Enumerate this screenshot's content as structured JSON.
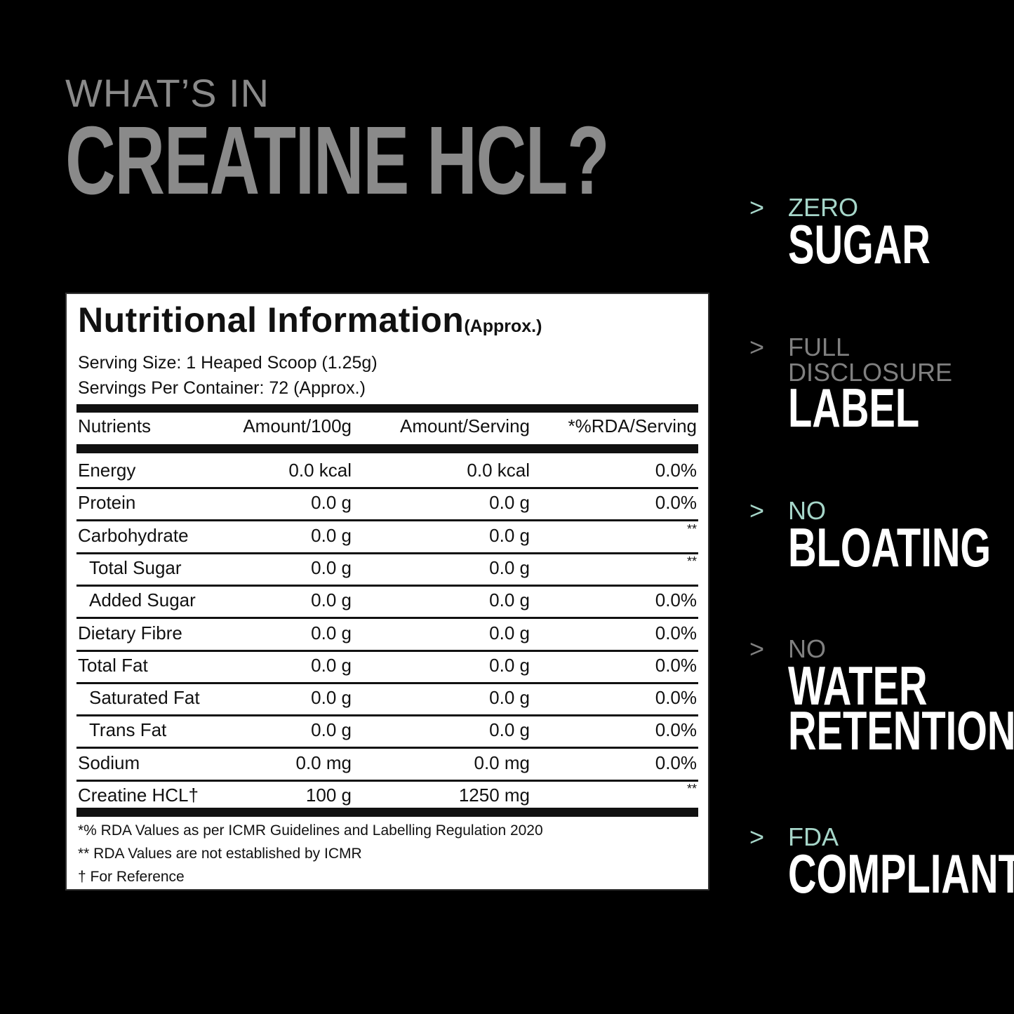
{
  "heading": {
    "kicker": "WHAT’S IN",
    "title": "CREATINE HCL?"
  },
  "label": {
    "title": "Nutritional Information",
    "title_suffix": "(Approx.)",
    "serving_size": "Serving Size: 1 Heaped Scoop (1.25g)",
    "servings_per_container": "Servings Per Container: 72 (Approx.)",
    "columns": [
      "Nutrients",
      "Amount/100g",
      "Amount/Serving",
      "*%RDA/Serving"
    ],
    "rows": [
      {
        "name": "Energy",
        "per100": "0.0 kcal",
        "perServing": "0.0 kcal",
        "rda": "0.0%"
      },
      {
        "name": "Protein",
        "per100": "0.0 g",
        "perServing": "0.0 g",
        "rda": "0.0%"
      },
      {
        "name": "Carbohydrate",
        "per100": "0.0 g",
        "perServing": "0.0 g",
        "rda": "**"
      },
      {
        "name": "Total Sugar",
        "per100": "0.0 g",
        "perServing": "0.0 g",
        "rda": "**"
      },
      {
        "name": "Added Sugar",
        "per100": "0.0 g",
        "perServing": "0.0 g",
        "rda": "0.0%"
      },
      {
        "name": "Dietary Fibre",
        "per100": "0.0 g",
        "perServing": "0.0 g",
        "rda": "0.0%"
      },
      {
        "name": "Total Fat",
        "per100": "0.0 g",
        "perServing": "0.0 g",
        "rda": "0.0%"
      },
      {
        "name": "Saturated Fat",
        "per100": "0.0 g",
        "perServing": "0.0 g",
        "rda": "0.0%"
      },
      {
        "name": "Trans Fat",
        "per100": "0.0 g",
        "perServing": "0.0 g",
        "rda": "0.0%"
      },
      {
        "name": "Sodium",
        "per100": "0.0 mg",
        "perServing": "0.0 mg",
        "rda": "0.0%"
      },
      {
        "name": "Creatine HCL†",
        "per100": "100 g",
        "perServing": "1250 mg",
        "rda": "**"
      }
    ],
    "footnotes": [
      "*% RDA Values as per ICMR Guidelines and Labelling Regulation 2020",
      "** RDA Values are not established by ICMR",
      "† For Reference"
    ]
  },
  "features": [
    {
      "prefix": "ZERO",
      "main": "SUGAR",
      "color": "#a6d6c9"
    },
    {
      "prefix": "FULL DISCLOSURE",
      "main": "LABEL",
      "color": "#808080"
    },
    {
      "prefix": "NO",
      "main": "BLOATING",
      "color": "#a6d6c9"
    },
    {
      "prefix": "NO",
      "main": "WATER RETENTION",
      "color": "#808080"
    },
    {
      "prefix": "FDA",
      "main": "COMPLIANT",
      "color": "#a6d6c9"
    }
  ],
  "icons": {
    "feature_marker": "chevron-right-icon"
  }
}
